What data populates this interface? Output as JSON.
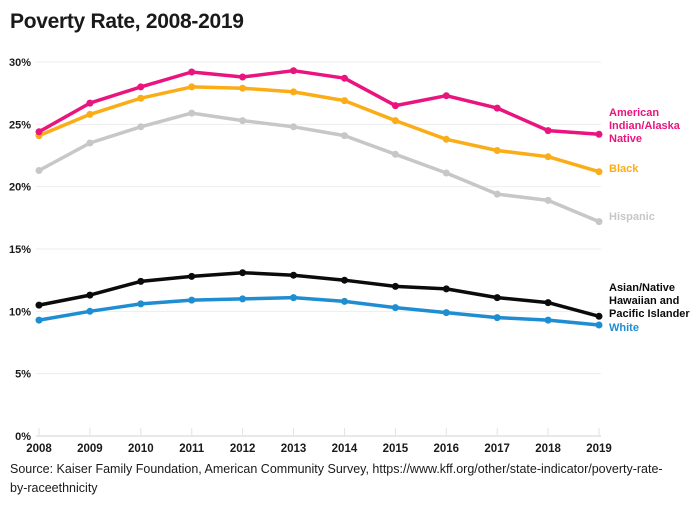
{
  "title": "Poverty Rate, 2008-2019",
  "source_lines": [
    "Source: Kaiser Family Foundation, American Community Survey, https://www.kff.org/other/state-indicator/poverty-rate-",
    "by-raceethnicity"
  ],
  "colors": {
    "grid": "#ededed",
    "axis": "#d2d2d2",
    "tick": "#e3e3e3",
    "text": "#1a1a1a"
  },
  "chart_data": {
    "type": "line",
    "title": "Poverty Rate, 2008-2019",
    "x": [
      2008,
      2009,
      2010,
      2011,
      2012,
      2013,
      2014,
      2015,
      2016,
      2017,
      2018,
      2019
    ],
    "series": [
      {
        "name": "American Indian/Alaska Native",
        "label_lines": [
          "American",
          "Indian/Alaska",
          "Native"
        ],
        "color": "#e9147e",
        "values": [
          24.4,
          26.7,
          28.0,
          29.2,
          28.8,
          29.3,
          28.7,
          26.5,
          27.3,
          26.3,
          24.5,
          24.2
        ]
      },
      {
        "name": "Black",
        "label_lines": [
          "Black"
        ],
        "color": "#fbad18",
        "values": [
          24.1,
          25.8,
          27.1,
          28.0,
          27.9,
          27.6,
          26.9,
          25.3,
          23.8,
          22.9,
          22.4,
          21.2
        ]
      },
      {
        "name": "Hispanic",
        "label_lines": [
          "Hispanic"
        ],
        "color": "#c7c7c7",
        "values": [
          21.3,
          23.5,
          24.8,
          25.9,
          25.3,
          24.8,
          24.1,
          22.6,
          21.1,
          19.4,
          18.9,
          17.2
        ]
      },
      {
        "name": "Asian/Native Hawaiian and Pacific Islander",
        "label_lines": [
          "Asian/Native",
          "Hawaiian and",
          "Pacific Islander"
        ],
        "color": "#0b0b0b",
        "values": [
          10.5,
          11.3,
          12.4,
          12.8,
          13.1,
          12.9,
          12.5,
          12.0,
          11.8,
          11.1,
          10.7,
          9.6
        ]
      },
      {
        "name": "White",
        "label_lines": [
          "White"
        ],
        "color": "#1f8dd1",
        "values": [
          9.3,
          10.0,
          10.6,
          10.9,
          11.0,
          11.1,
          10.8,
          10.3,
          9.9,
          9.5,
          9.3,
          8.9
        ]
      }
    ],
    "y_ticks": [
      {
        "value": 0,
        "label": "0%"
      },
      {
        "value": 5,
        "label": "5%"
      },
      {
        "value": 10,
        "label": "10%"
      },
      {
        "value": 15,
        "label": "15%"
      },
      {
        "value": 20,
        "label": "20%"
      },
      {
        "value": 25,
        "label": "25%"
      },
      {
        "value": 30,
        "label": "30%"
      }
    ],
    "ylim": [
      0,
      30
    ],
    "xlabel": "",
    "ylabel": "",
    "grid": true,
    "markers": true,
    "legend_position": "right"
  }
}
